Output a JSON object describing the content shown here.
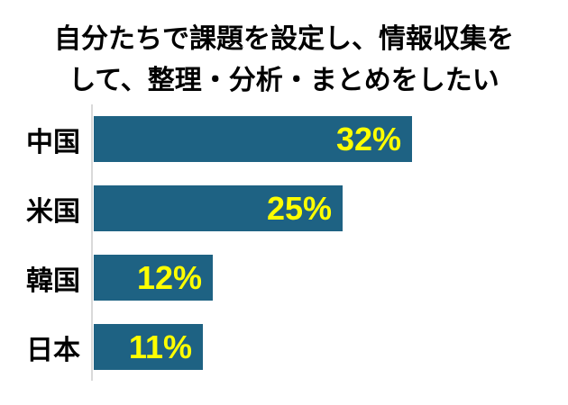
{
  "title": {
    "lines": [
      "自分たちで課題を設定し、情報収集を",
      "して、整理・分析・まとめをしたい"
    ]
  },
  "chart_data": {
    "type": "bar",
    "orientation": "horizontal",
    "title": "自分たちで課題を設定し、情報収集をして、整理・分析・まとめをしたい",
    "categories": [
      "中国",
      "米国",
      "韓国",
      "日本"
    ],
    "values": [
      32,
      25,
      12,
      11
    ],
    "value_labels": [
      "32%",
      "25%",
      "12%",
      "11%"
    ],
    "value_label_position": "inside-end",
    "xlim": [
      0,
      46
    ],
    "grid": false,
    "legend": false,
    "colors": {
      "bar": "#1e6283",
      "value_label": "#ffff00",
      "category_label": "#000000",
      "title": "#000000",
      "axis_line": "#d9d9d9",
      "background": "#ffffff"
    }
  }
}
